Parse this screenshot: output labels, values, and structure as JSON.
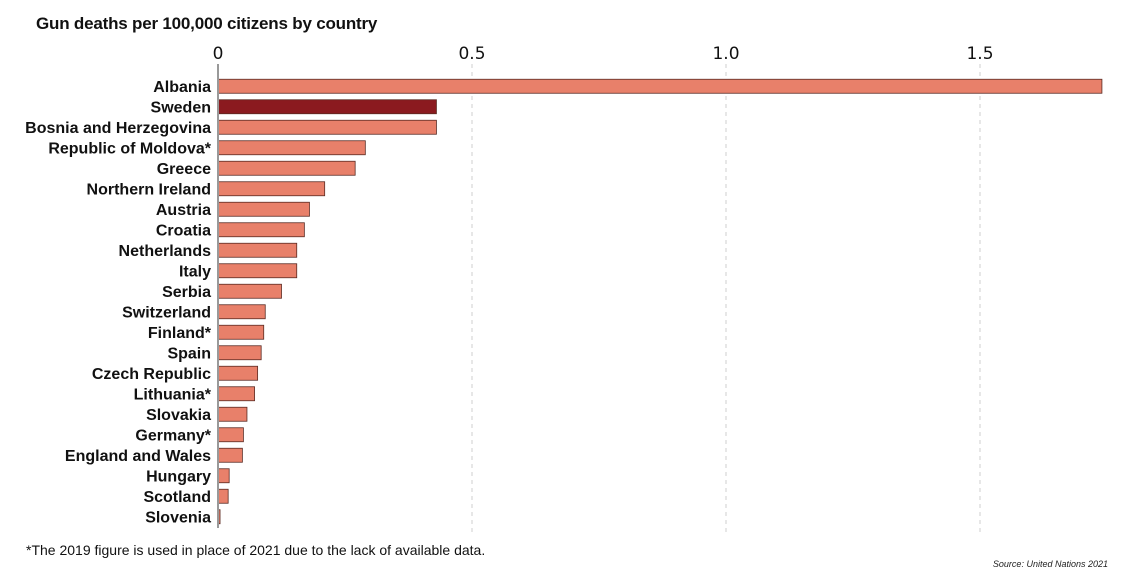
{
  "title": "Gun deaths per 100,000 citizens by country",
  "footnote": "*The 2019 figure is used in place of 2021 due to the lack of available data.",
  "source": "Source: United Nations 2021",
  "colors": {
    "bar": "#e8806a",
    "highlight": "#8b1a1f",
    "bar_stroke": "#5a2a22",
    "grid": "#cfcfcf",
    "axis": "#999999"
  },
  "chart_data": {
    "type": "bar",
    "orientation": "horizontal",
    "x_axis_position": "top",
    "xlim": [
      0,
      1.75
    ],
    "xticks": [
      0,
      0.5,
      1.0,
      1.5
    ],
    "xtick_labels": [
      "0",
      "0.5",
      "1.0",
      "1.5"
    ],
    "grid": "vertical dashed",
    "highlight_category": "Sweden",
    "categories": [
      "Albania",
      "Sweden",
      "Bosnia and Herzegovina",
      "Republic of Moldova*",
      "Greece",
      "Northern Ireland",
      "Austria",
      "Croatia",
      "Netherlands",
      "Italy",
      "Serbia",
      "Switzerland",
      "Finland*",
      "Spain",
      "Czech Republic",
      "Lithuania*",
      "Slovakia",
      "Germany*",
      "England and Wales",
      "Hungary",
      "Scotland",
      "Slovenia"
    ],
    "values": [
      1.74,
      0.43,
      0.43,
      0.29,
      0.27,
      0.21,
      0.18,
      0.17,
      0.155,
      0.155,
      0.125,
      0.093,
      0.09,
      0.085,
      0.078,
      0.072,
      0.057,
      0.05,
      0.048,
      0.022,
      0.02,
      0.004
    ]
  }
}
